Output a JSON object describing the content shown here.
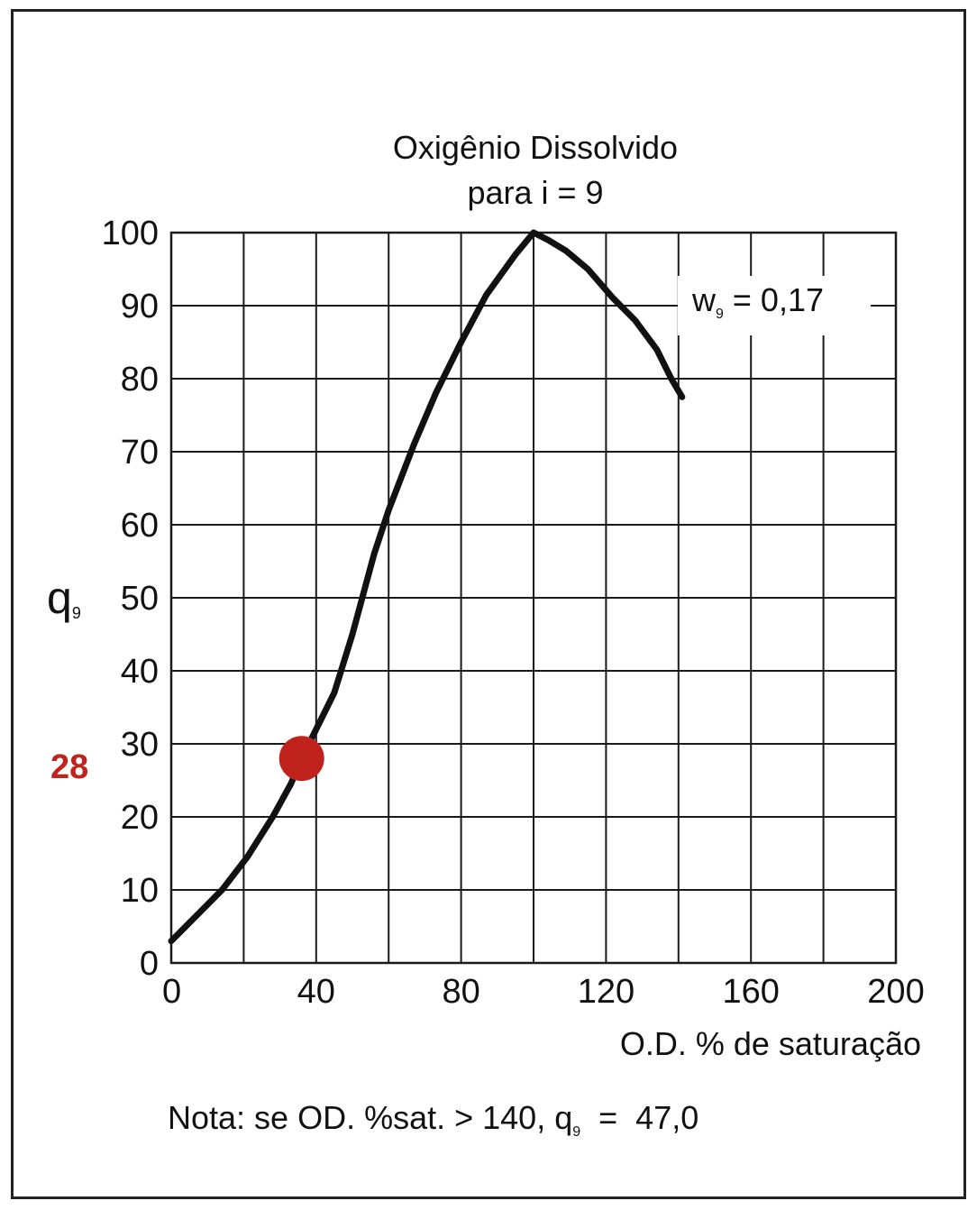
{
  "chart_data": {
    "type": "line",
    "title_line1": "Oxigênio Dissolvido",
    "title_line2": "para i = 9",
    "ylabel_main": "q",
    "ylabel_sub": "9",
    "xlabel": "O.D. % de saturação",
    "xlim": [
      0,
      200
    ],
    "ylim": [
      0,
      100
    ],
    "x_ticks": [
      0,
      40,
      80,
      120,
      160,
      200
    ],
    "y_ticks": [
      0,
      10,
      20,
      30,
      40,
      50,
      60,
      70,
      80,
      90,
      100
    ],
    "grid": true,
    "weight_label": {
      "main": "w",
      "sub": "9",
      "value": " = 0,17"
    },
    "series": [
      {
        "x": [
          0,
          8,
          14,
          21,
          28,
          33,
          36,
          40,
          45,
          50,
          56,
          60,
          67,
          73,
          80,
          87,
          95,
          100,
          104,
          109,
          115,
          122,
          128,
          134,
          138,
          141
        ],
        "y": [
          3,
          7,
          10,
          14.5,
          20,
          24.5,
          28,
          32,
          37,
          45,
          56,
          62,
          71,
          78,
          85,
          91.5,
          97,
          100,
          99,
          97.5,
          95,
          91,
          88,
          84,
          80,
          77.5
        ]
      }
    ],
    "highlight": {
      "x": 36,
      "y": 28,
      "label": "28",
      "color": "#c0221c"
    },
    "note": {
      "prefix": "Nota: se OD. %sat. > 140, q",
      "sub": "9",
      "suffix": "  =  47,0"
    }
  }
}
